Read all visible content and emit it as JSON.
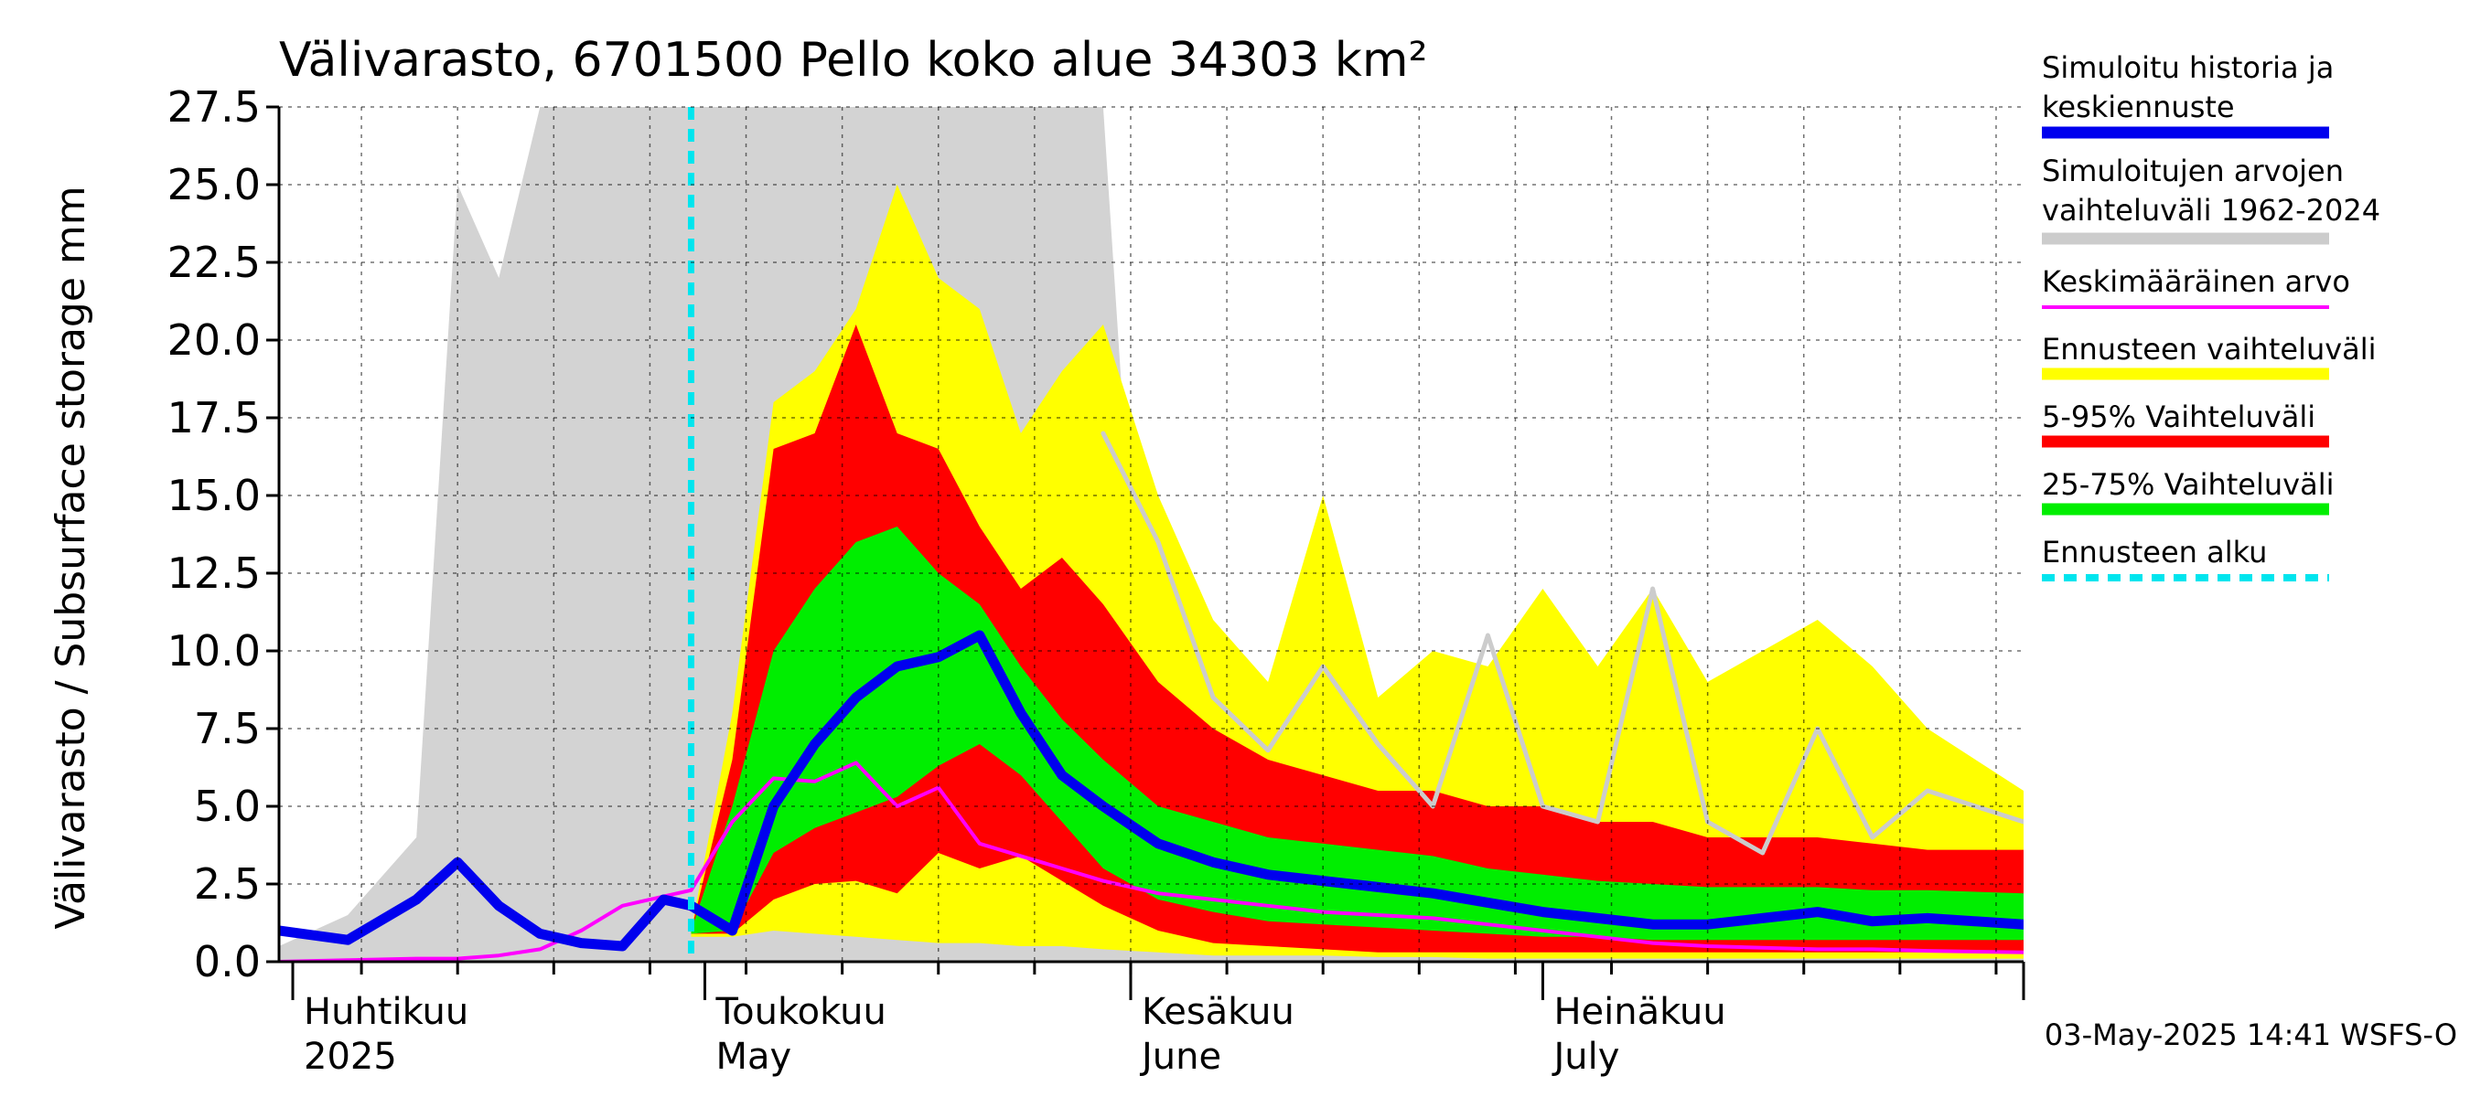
{
  "chart_data": {
    "type": "area",
    "title": "Välivarasto, 6701500 Pello koko alue 34303 km²",
    "ylabel": "Välivarasto / Subsurface storage  mm",
    "ylim": [
      0,
      27.5
    ],
    "yticks": [
      "0.0",
      "2.5",
      "5.0",
      "7.5",
      "10.0",
      "12.5",
      "15.0",
      "17.5",
      "20.0",
      "22.5",
      "25.0",
      "27.5"
    ],
    "x_start": "2025-03-31",
    "x_end": "2025-08-05",
    "forecast_start": "2025-04-30",
    "month_labels": [
      {
        "date": "2025-04-01",
        "fi": "Huhtikuu",
        "en": "2025"
      },
      {
        "date": "2025-05-01",
        "fi": "Toukokuu",
        "en": "May"
      },
      {
        "date": "2025-06-01",
        "fi": "Kesäkuu",
        "en": "June"
      },
      {
        "date": "2025-07-01",
        "fi": "Heinäkuu",
        "en": "July"
      }
    ],
    "dates": [
      "2025-03-31",
      "2025-04-05",
      "2025-04-10",
      "2025-04-13",
      "2025-04-16",
      "2025-04-19",
      "2025-04-22",
      "2025-04-25",
      "2025-04-28",
      "2025-04-30",
      "2025-05-03",
      "2025-05-06",
      "2025-05-09",
      "2025-05-12",
      "2025-05-15",
      "2025-05-18",
      "2025-05-21",
      "2025-05-24",
      "2025-05-27",
      "2025-05-30",
      "2025-06-03",
      "2025-06-07",
      "2025-06-11",
      "2025-06-15",
      "2025-06-19",
      "2025-06-23",
      "2025-06-27",
      "2025-07-01",
      "2025-07-05",
      "2025-07-09",
      "2025-07-13",
      "2025-07-17",
      "2025-07-21",
      "2025-07-25",
      "2025-07-29",
      "2025-08-05"
    ],
    "history_range": {
      "low": [
        0,
        0,
        0,
        0,
        0,
        0,
        0,
        0,
        0,
        0,
        0,
        0,
        0,
        0,
        0,
        0,
        0,
        0,
        0,
        0,
        0,
        0,
        0,
        0,
        0,
        0,
        0,
        0,
        0,
        0,
        0,
        0,
        0,
        0,
        0,
        0
      ],
      "high": [
        0.5,
        1.5,
        4,
        25,
        22,
        27.5,
        27.5,
        27.5,
        27.5,
        27.5,
        27.5,
        27.5,
        27.5,
        27.5,
        27.5,
        27.5,
        27.5,
        27.5,
        27.5,
        27.5,
        0.5,
        0.5,
        0.5,
        0.5,
        0.5,
        0.5,
        0.5,
        0.5,
        0.5,
        0.5,
        0.5,
        0.5,
        0.5,
        0.5,
        0.5,
        0.5
      ]
    },
    "series": [
      {
        "name": "Simuloitu historia ja keskiennuste",
        "color": "#0000ee",
        "values": [
          1.0,
          0.7,
          2.0,
          3.2,
          1.8,
          0.9,
          0.6,
          0.5,
          2.0,
          1.8,
          1.0,
          5.0,
          7.0,
          8.5,
          9.5,
          9.8,
          10.5,
          8.0,
          6.0,
          5.0,
          3.8,
          3.2,
          2.8,
          2.6,
          2.4,
          2.2,
          1.9,
          1.6,
          1.4,
          1.2,
          1.2,
          1.4,
          1.6,
          1.3,
          1.4,
          1.2
        ]
      },
      {
        "name": "Keskimääräinen arvo",
        "color": "#ff00ff",
        "values": [
          0.0,
          0.05,
          0.1,
          0.1,
          0.2,
          0.4,
          1.0,
          1.8,
          2.1,
          2.3,
          4.5,
          5.9,
          5.8,
          6.4,
          5.0,
          5.6,
          3.8,
          3.4,
          3.0,
          2.6,
          2.2,
          2.0,
          1.8,
          1.6,
          1.5,
          1.4,
          1.2,
          1.0,
          0.8,
          0.6,
          0.5,
          0.45,
          0.4,
          0.4,
          0.35,
          0.3
        ]
      },
      {
        "name": "Ennusteen vaihteluväli",
        "color": "#ffff00",
        "low": [
          null,
          null,
          null,
          null,
          null,
          null,
          null,
          null,
          null,
          0.8,
          0.8,
          1.0,
          0.9,
          0.8,
          0.7,
          0.6,
          0.6,
          0.5,
          0.5,
          0.4,
          0.3,
          0.2,
          0.2,
          0.2,
          0.15,
          0.15,
          0.1,
          0.1,
          0.1,
          0.1,
          0.1,
          0.1,
          0.1,
          0.1,
          0.1,
          0.1
        ],
        "high": [
          null,
          null,
          null,
          null,
          null,
          null,
          null,
          null,
          null,
          1.0,
          8,
          18,
          19,
          21,
          25,
          22,
          21,
          17,
          19,
          20.5,
          15,
          11,
          9,
          15,
          8.5,
          10,
          9.5,
          12,
          9.5,
          12,
          9,
          10,
          11,
          9.5,
          7.5,
          5.5
        ]
      },
      {
        "name": "5-95% Vaihteluväli",
        "color": "#ff0000",
        "low": [
          null,
          null,
          null,
          null,
          null,
          null,
          null,
          null,
          null,
          0.9,
          0.9,
          2.0,
          2.5,
          2.6,
          2.2,
          3.5,
          3.0,
          3.4,
          2.6,
          1.8,
          1.0,
          0.6,
          0.5,
          0.4,
          0.3,
          0.3,
          0.3,
          0.3,
          0.3,
          0.3,
          0.3,
          0.3,
          0.3,
          0.3,
          0.3,
          0.3
        ],
        "high": [
          null,
          null,
          null,
          null,
          null,
          null,
          null,
          null,
          null,
          1.0,
          6.5,
          16.5,
          17,
          20.5,
          17,
          16.5,
          14,
          12,
          13,
          11.5,
          9,
          7.5,
          6.5,
          6,
          5.5,
          5.5,
          5,
          5,
          4.5,
          4.5,
          4,
          4,
          4,
          3.8,
          3.6,
          3.6
        ]
      },
      {
        "name": "25-75% Vaihteluväli",
        "color": "#00ee00",
        "low": [
          null,
          null,
          null,
          null,
          null,
          null,
          null,
          null,
          null,
          0.9,
          1.0,
          3.5,
          4.3,
          4.8,
          5.3,
          6.3,
          7.0,
          6.0,
          4.5,
          3.0,
          2.0,
          1.6,
          1.3,
          1.2,
          1.1,
          1.0,
          0.9,
          0.8,
          0.8,
          0.7,
          0.7,
          0.7,
          0.7,
          0.7,
          0.7,
          0.7
        ],
        "high": [
          null,
          null,
          null,
          null,
          null,
          null,
          null,
          null,
          null,
          1.0,
          5.0,
          10,
          12,
          13.5,
          14,
          12.5,
          11.5,
          9.5,
          7.8,
          6.5,
          5,
          4.5,
          4,
          3.8,
          3.6,
          3.4,
          3.0,
          2.8,
          2.6,
          2.5,
          2.4,
          2.4,
          2.4,
          2.3,
          2.3,
          2.2
        ]
      }
    ],
    "history_median": {
      "name": "",
      "color": "#cccccc",
      "values": [
        null,
        null,
        null,
        null,
        null,
        null,
        null,
        null,
        null,
        null,
        null,
        null,
        null,
        null,
        null,
        null,
        null,
        null,
        null,
        17,
        13.5,
        8.5,
        6.8,
        9.5,
        7.0,
        5.0,
        10.5,
        5.0,
        4.5,
        12,
        4.5,
        3.5,
        7.5,
        4.0,
        5.5,
        4.5
      ]
    },
    "legend": [
      {
        "text": [
          "Simuloitu historia ja",
          "keskiennuste"
        ],
        "color": "#0000ee",
        "style": "solid"
      },
      {
        "text": [
          "Simuloitujen arvojen",
          "vaihteluväli 1962-2024"
        ],
        "color": "#cccccc",
        "style": "solid"
      },
      {
        "text": [
          "Keskimääräinen arvo"
        ],
        "color": "#ff00ff",
        "style": "thin"
      },
      {
        "text": [
          "Ennusteen vaihteluväli"
        ],
        "color": "#ffff00",
        "style": "solid"
      },
      {
        "text": [
          "5-95% Vaihteluväli"
        ],
        "color": "#ff0000",
        "style": "solid"
      },
      {
        "text": [
          "25-75% Vaihteluväli"
        ],
        "color": "#00ee00",
        "style": "solid"
      },
      {
        "text": [
          "Ennusteen alku"
        ],
        "color": "#00e5ee",
        "style": "dashed"
      }
    ],
    "timestamp": "03-May-2025 14:41 WSFS-O",
    "legend_position": "right"
  }
}
